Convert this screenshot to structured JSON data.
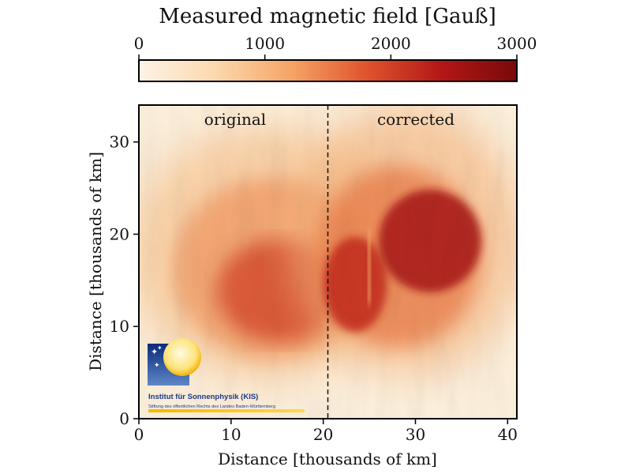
{
  "chart_data": {
    "type": "heatmap",
    "title": "",
    "xlabel": "Distance [thousands of km]",
    "ylabel": "Distance [thousands of km]",
    "xlim": [
      0,
      41
    ],
    "ylim": [
      0,
      34
    ],
    "xticks": [
      0,
      10,
      20,
      30,
      40
    ],
    "yticks": [
      0,
      10,
      20,
      30
    ],
    "panel_labels": [
      "original",
      "corrected"
    ],
    "divider_x": 20.5,
    "colorbar": {
      "label": "Measured magnetic field [Gauß]",
      "min": 0,
      "max": 3000,
      "ticks": [
        0,
        1000,
        2000,
        3000
      ],
      "colors": [
        "#fdf3e6",
        "#fbd9ae",
        "#f6a567",
        "#e0542d",
        "#b31717",
        "#7a0909"
      ]
    },
    "features": [
      {
        "name": "umbra-original",
        "x": 15.5,
        "y": 13,
        "peak_field": 1800
      },
      {
        "name": "umbra-corrected-left",
        "x": 25.5,
        "y": 14,
        "peak_field": 2300
      },
      {
        "name": "umbra-corrected-right",
        "x": 31.5,
        "y": 18,
        "peak_field": 2500
      }
    ]
  },
  "logo": {
    "name": "Institut für Sonnenphysik (KIS)",
    "subtitle": "Stiftung des öffentlichen Rechts des Landes Baden-Württemberg"
  }
}
